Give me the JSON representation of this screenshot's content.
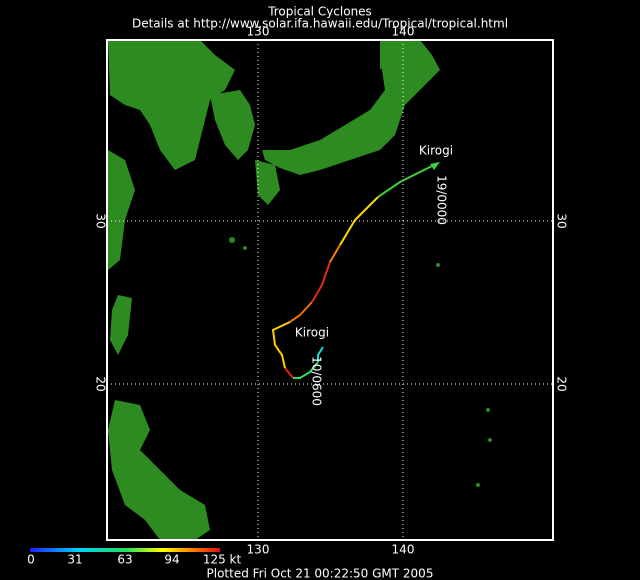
{
  "header": {
    "title": "Tropical Cyclones",
    "subtitle": "Details at http://www.solar.ifa.hawaii.edu/Tropical/tropical.html"
  },
  "map": {
    "lon_labels_top": [
      130,
      140
    ],
    "lon_labels_bottom": [
      130,
      140
    ],
    "lat_labels_left": [
      30,
      20
    ],
    "lat_labels_right": [
      30,
      20
    ],
    "storms": [
      {
        "name": "Kirogi",
        "time": "19/0000"
      },
      {
        "name": "Kirogi",
        "time": "10/0600"
      }
    ]
  },
  "legend": {
    "labels": [
      0,
      31,
      63,
      94,
      "125 kt"
    ]
  },
  "footer": "Plotted Fri Oct 21 00:22:50 GMT 2005"
}
